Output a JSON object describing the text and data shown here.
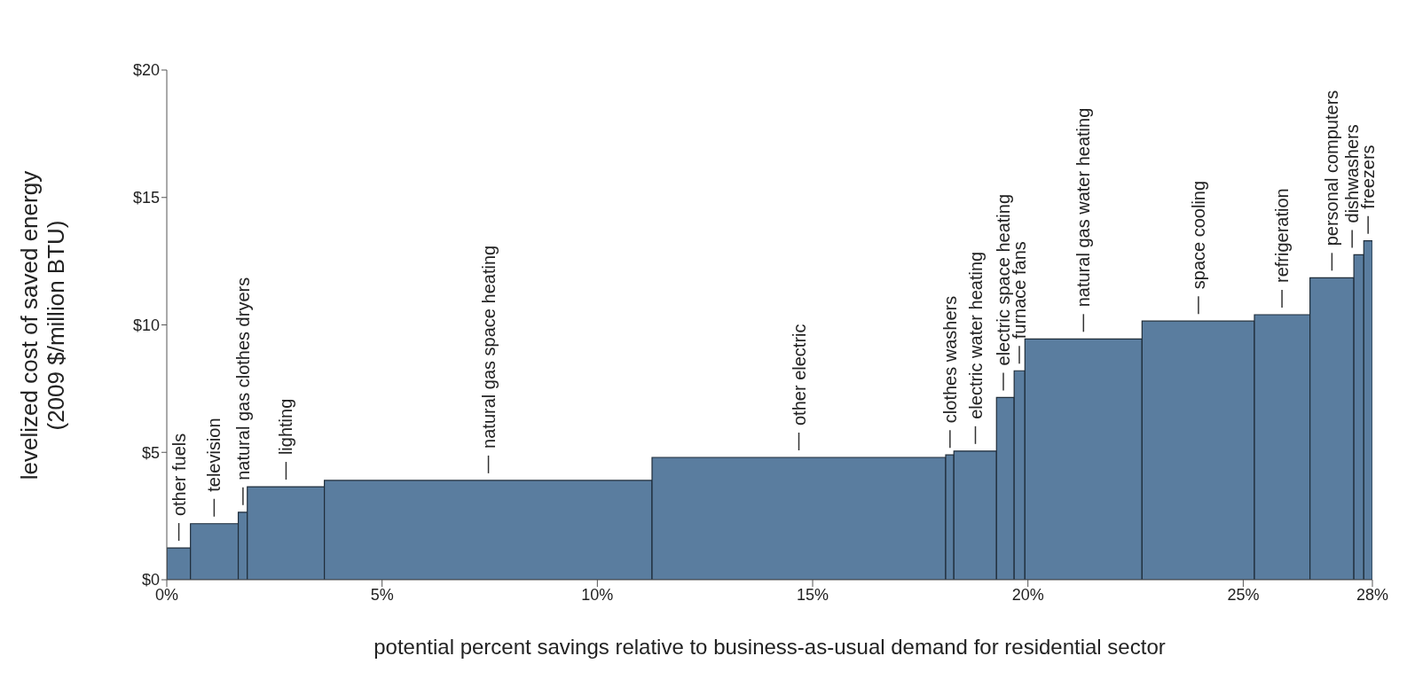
{
  "chart_data": {
    "type": "histogram",
    "xlabel": "potential percent savings relative to business-as-usual demand for residential sector",
    "ylabel": "levelized cost of saved energy (2009 $/million BTU)",
    "bins": [
      0,
      0.55,
      1.66,
      1.87,
      3.66,
      11.27,
      18.09,
      18.28,
      19.27,
      19.68,
      19.93,
      22.65,
      25.26,
      26.55,
      27.57,
      27.8,
      28.0
    ],
    "values": [
      1.25,
      2.2,
      2.65,
      3.65,
      3.9,
      4.8,
      4.9,
      5.05,
      7.15,
      8.2,
      9.45,
      10.15,
      10.4,
      11.85,
      12.75,
      13.3
    ],
    "color": "#5a7d9f",
    "xlim": [
      0,
      28
    ],
    "xticks": [
      {
        "value": 0,
        "label": "0%"
      },
      {
        "value": 5,
        "label": "5%"
      },
      {
        "value": 10,
        "label": "10%"
      },
      {
        "value": 15,
        "label": "15%"
      },
      {
        "value": 20,
        "label": "20%"
      },
      {
        "value": 25,
        "label": "25%"
      },
      {
        "value": 28,
        "label": "28%"
      }
    ],
    "ylim": [
      0,
      20
    ],
    "yticks": [
      {
        "value": 0,
        "label": "$0"
      },
      {
        "value": 5,
        "label": "$5"
      },
      {
        "value": 10,
        "label": "$10"
      },
      {
        "value": 15,
        "label": "$15"
      },
      {
        "value": 20,
        "label": "$20"
      }
    ],
    "grid": false,
    "annotations": [
      {
        "text": "other fuels",
        "x": 0.28,
        "y": 1.25
      },
      {
        "text": "television",
        "x": 1.1,
        "y": 2.2
      },
      {
        "text": "natural gas clothes dryers",
        "x": 1.77,
        "y": 2.65
      },
      {
        "text": "lighting",
        "x": 2.77,
        "y": 3.65
      },
      {
        "text": "natural gas space heating",
        "x": 7.47,
        "y": 3.9
      },
      {
        "text": "other electric",
        "x": 14.68,
        "y": 4.8
      },
      {
        "text": "clothes washers",
        "x": 18.19,
        "y": 4.9
      },
      {
        "text": "electric water heating",
        "x": 18.78,
        "y": 5.05
      },
      {
        "text": "electric space heating",
        "x": 19.48,
        "y": 7.15
      },
      {
        "text": "furnace fans",
        "x": 19.8,
        "y": 8.2
      },
      {
        "text": "natural gas water heating",
        "x": 21.29,
        "y": 9.45
      },
      {
        "text": "space cooling",
        "x": 23.96,
        "y": 10.15
      },
      {
        "text": "refrigeration",
        "x": 25.9,
        "y": 10.4
      },
      {
        "text": "personal computers",
        "x": 27.06,
        "y": 11.85
      },
      {
        "text": "dishwashers",
        "x": 27.69,
        "y": 12.75
      },
      {
        "text": "freezers",
        "x": 27.9,
        "y": 13.3
      }
    ]
  }
}
